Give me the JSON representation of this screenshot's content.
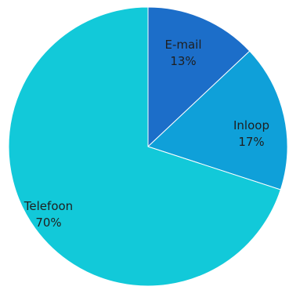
{
  "chart_data": {
    "type": "pie",
    "start_angle": "12 o'clock",
    "direction": "clockwise",
    "slices": [
      {
        "name": "E-mail",
        "value": 13,
        "label": "13%",
        "color": "#1c6ec9"
      },
      {
        "name": "Inloop",
        "value": 17,
        "label": "17%",
        "color": "#0fa0d9"
      },
      {
        "name": "Telefoon",
        "value": 70,
        "label": "70%",
        "color": "#12c9d9"
      }
    ],
    "legend": "none",
    "data_labels": "category name and percentage, inside slices"
  }
}
